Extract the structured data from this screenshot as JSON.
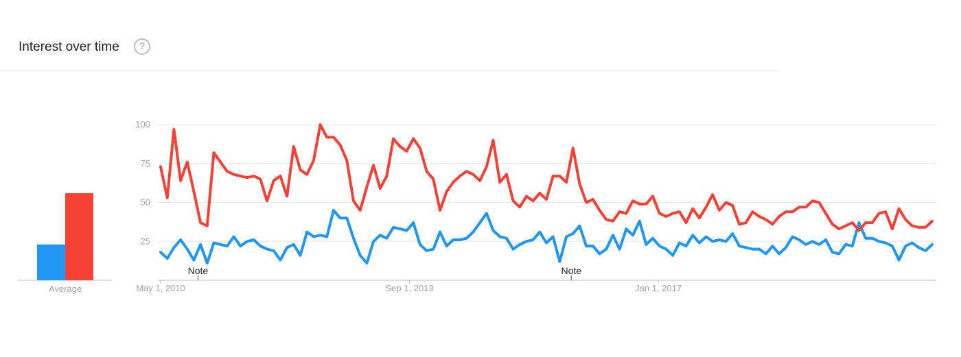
{
  "header": {
    "title": "Interest over time",
    "help_glyph": "?"
  },
  "average": {
    "label": "Average"
  },
  "colors": {
    "series_1": "#2196F3",
    "series_2": "#F44336",
    "grid": "#e6e6e6",
    "axis": "#bdbdbd",
    "tick_text": "#a3a3a3"
  },
  "notes": [
    {
      "date": "2010-11",
      "label": "Note"
    },
    {
      "date": "2015-11",
      "label": "Note"
    }
  ],
  "chart_data": {
    "type": "line",
    "title": "Interest over time",
    "xlabel": "",
    "ylabel": "",
    "ylim": [
      0,
      100
    ],
    "yticks": [
      25,
      50,
      75,
      100
    ],
    "xtick_labels": [
      {
        "date": "2010-05",
        "label": "May 1, 2010"
      },
      {
        "date": "2013-09",
        "label": "Sep 1, 2013"
      },
      {
        "date": "2017-01",
        "label": "Jan 1, 2017"
      }
    ],
    "x_start": "2010-05",
    "x_end": "2020-09",
    "grid": true,
    "average_values": [
      23,
      56
    ],
    "series": [
      {
        "color": "#2196F3",
        "values": [
          18,
          14,
          21,
          26,
          20,
          13,
          23,
          11,
          24,
          23,
          22,
          28,
          22,
          25,
          26,
          22,
          20,
          19,
          13,
          21,
          23,
          16,
          31,
          28,
          29,
          28,
          45,
          40,
          40,
          27,
          16,
          11,
          25,
          29,
          27,
          34,
          33,
          32,
          37,
          23,
          19,
          20,
          31,
          22,
          26,
          26,
          27,
          31,
          37,
          43,
          32,
          28,
          27,
          20,
          23,
          25,
          26,
          31,
          24,
          28,
          12,
          28,
          30,
          35,
          22,
          22,
          17,
          20,
          29,
          20,
          33,
          29,
          38,
          23,
          27,
          22,
          20,
          16,
          24,
          22,
          29,
          24,
          28,
          25,
          26,
          25,
          30,
          22,
          21,
          20,
          20,
          17,
          22,
          17,
          21,
          28,
          26,
          23,
          25,
          23,
          26,
          18,
          17,
          23,
          22,
          37,
          27,
          27,
          25,
          24,
          22,
          13,
          22,
          24,
          21,
          19,
          23
        ]
      },
      {
        "color": "#F44336",
        "values": [
          73,
          53,
          97,
          64,
          76,
          57,
          37,
          35,
          82,
          76,
          70,
          68,
          67,
          66,
          67,
          65,
          51,
          64,
          67,
          54,
          86,
          71,
          68,
          77,
          100,
          92,
          92,
          87,
          77,
          51,
          45,
          60,
          74,
          59,
          67,
          91,
          86,
          83,
          91,
          85,
          70,
          65,
          45,
          57,
          63,
          67,
          70,
          68,
          64,
          73,
          90,
          63,
          68,
          51,
          47,
          54,
          51,
          56,
          52,
          67,
          67,
          63,
          85,
          62,
          50,
          52,
          45,
          39,
          38,
          44,
          43,
          51,
          49,
          49,
          54,
          43,
          41,
          43,
          44,
          37,
          46,
          40,
          47,
          55,
          45,
          50,
          48,
          36,
          37,
          44,
          41,
          39,
          36,
          41,
          44,
          44,
          47,
          47,
          51,
          50,
          43,
          36,
          33,
          35,
          37,
          32,
          37,
          37,
          43,
          44,
          33,
          46,
          39,
          35,
          34,
          34,
          38
        ]
      }
    ]
  }
}
